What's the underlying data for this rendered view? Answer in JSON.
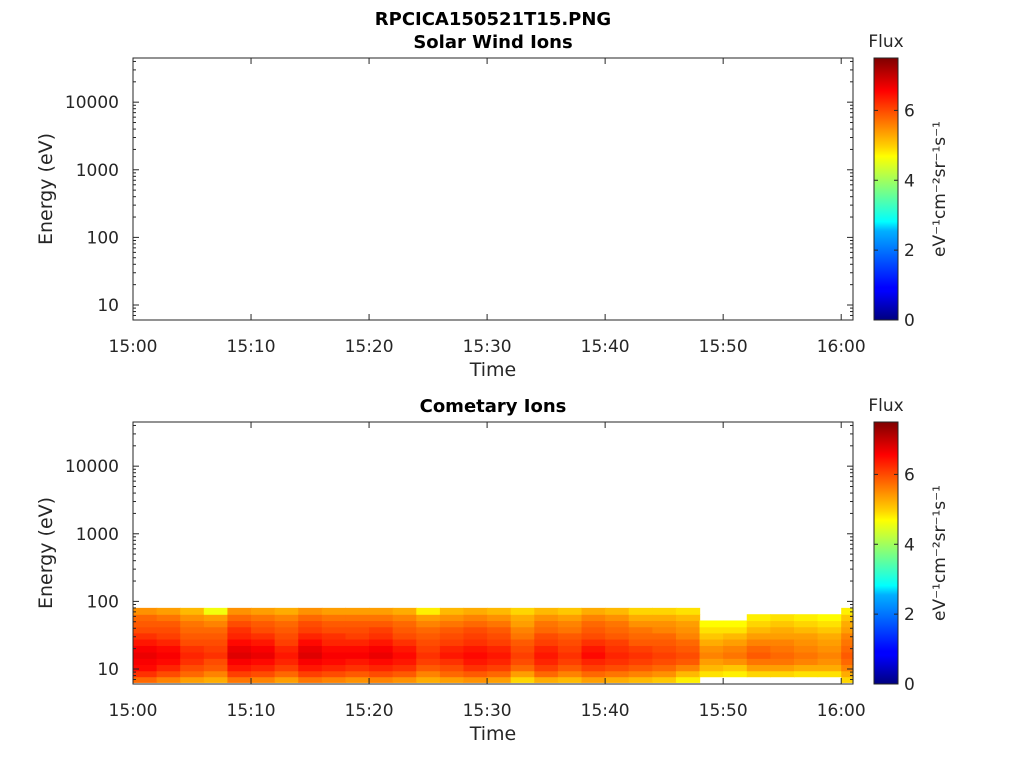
{
  "figure": {
    "file_title": "RPCICA150521T15.PNG"
  },
  "panels": [
    {
      "title": "Solar Wind Ions",
      "xlabel": "Time",
      "ylabel": "Energy (eV)",
      "xticks": [
        "15:00",
        "15:10",
        "15:20",
        "15:30",
        "15:40",
        "15:50",
        "16:00"
      ],
      "yticks": [
        "10",
        "100",
        "1000",
        "10000"
      ],
      "colorbar": {
        "title": "Flux",
        "unit": "eV⁻¹cm⁻²sr⁻¹s⁻¹",
        "ticks": [
          "0",
          "2",
          "4",
          "6"
        ]
      }
    },
    {
      "title": "Cometary Ions",
      "xlabel": "Time",
      "ylabel": "Energy (eV)",
      "xticks": [
        "15:00",
        "15:10",
        "15:20",
        "15:30",
        "15:40",
        "15:50",
        "16:00"
      ],
      "yticks": [
        "10",
        "100",
        "1000",
        "10000"
      ],
      "colorbar": {
        "title": "Flux",
        "unit": "eV⁻¹cm⁻²sr⁻¹s⁻¹",
        "ticks": [
          "0",
          "2",
          "4",
          "6"
        ]
      }
    }
  ],
  "chart_data": [
    {
      "type": "heatmap",
      "title": "Solar Wind Ions",
      "xlabel": "Time",
      "ylabel": "Energy (eV)",
      "x_range": [
        "15:00",
        "16:01"
      ],
      "y_range": [
        6,
        45000
      ],
      "y_scale": "log",
      "color_range": [
        0,
        7.5
      ],
      "colormap": "jet",
      "cells": []
    },
    {
      "type": "heatmap",
      "title": "Cometary Ions",
      "xlabel": "Time",
      "ylabel": "Energy (eV)",
      "x_range": [
        "15:00",
        "16:01"
      ],
      "y_range": [
        6,
        45000
      ],
      "y_scale": "log",
      "color_range": [
        0,
        7.5
      ],
      "colormap": "jet",
      "energy_bins": [
        7,
        8.5,
        10.5,
        13,
        16,
        20,
        25,
        31,
        38,
        47,
        58,
        72
      ],
      "columns": [
        {
          "time": "15:00",
          "flux": [
            5.8,
            6.2,
            6.5,
            6.6,
            6.7,
            6.6,
            6.4,
            6.2,
            6.0,
            5.9,
            5.8,
            5.5
          ]
        },
        {
          "time": "15:02",
          "flux": [
            5.6,
            6.0,
            6.3,
            6.5,
            6.6,
            6.5,
            6.3,
            6.1,
            6.0,
            5.9,
            5.7,
            5.4
          ]
        },
        {
          "time": "15:04",
          "flux": [
            5.4,
            5.8,
            6.0,
            6.2,
            6.3,
            6.2,
            6.0,
            5.9,
            5.8,
            5.7,
            5.5,
            5.2
          ]
        },
        {
          "time": "15:06",
          "flux": [
            5.3,
            5.6,
            5.9,
            6.0,
            6.2,
            6.1,
            6.0,
            5.9,
            5.8,
            5.6,
            5.4,
            4.6
          ]
        },
        {
          "time": "15:08",
          "flux": [
            5.7,
            6.1,
            6.4,
            6.6,
            6.8,
            6.7,
            6.5,
            6.3,
            6.2,
            6.0,
            5.8,
            5.5
          ]
        },
        {
          "time": "15:10",
          "flux": [
            5.6,
            6.0,
            6.3,
            6.5,
            6.7,
            6.6,
            6.4,
            6.2,
            6.0,
            5.9,
            5.7,
            5.4
          ]
        },
        {
          "time": "15:12",
          "flux": [
            5.4,
            5.8,
            6.1,
            6.3,
            6.4,
            6.3,
            6.1,
            6.0,
            5.9,
            5.8,
            5.6,
            5.3
          ]
        },
        {
          "time": "15:14",
          "flux": [
            5.7,
            6.1,
            6.4,
            6.6,
            6.8,
            6.7,
            6.5,
            6.3,
            6.1,
            6.0,
            5.8,
            5.5
          ]
        },
        {
          "time": "15:16",
          "flux": [
            5.6,
            6.0,
            6.3,
            6.5,
            6.6,
            6.5,
            6.3,
            6.2,
            6.0,
            5.9,
            5.7,
            5.4
          ]
        },
        {
          "time": "15:18",
          "flux": [
            5.5,
            5.9,
            6.2,
            6.4,
            6.6,
            6.5,
            6.3,
            6.1,
            6.0,
            5.9,
            5.7,
            5.4
          ]
        },
        {
          "time": "15:20",
          "flux": [
            5.6,
            6.0,
            6.3,
            6.5,
            6.7,
            6.6,
            6.4,
            6.2,
            6.1,
            5.9,
            5.7,
            5.4
          ]
        },
        {
          "time": "15:22",
          "flux": [
            5.5,
            5.9,
            6.2,
            6.4,
            6.5,
            6.4,
            6.2,
            6.0,
            5.9,
            5.8,
            5.6,
            5.3
          ]
        },
        {
          "time": "15:24",
          "flux": [
            5.3,
            5.6,
            5.9,
            6.1,
            6.2,
            6.1,
            6.0,
            5.9,
            5.8,
            5.6,
            5.4,
            4.8
          ]
        },
        {
          "time": "15:26",
          "flux": [
            5.4,
            5.8,
            6.0,
            6.2,
            6.4,
            6.3,
            6.1,
            6.0,
            5.9,
            5.7,
            5.5,
            5.2
          ]
        },
        {
          "time": "15:28",
          "flux": [
            5.5,
            5.9,
            6.2,
            6.4,
            6.5,
            6.4,
            6.2,
            6.1,
            6.0,
            5.8,
            5.6,
            5.3
          ]
        },
        {
          "time": "15:30",
          "flux": [
            5.4,
            5.8,
            6.1,
            6.3,
            6.4,
            6.3,
            6.1,
            6.0,
            5.9,
            5.7,
            5.5,
            5.2
          ]
        },
        {
          "time": "15:32",
          "flux": [
            5.0,
            5.4,
            5.8,
            6.0,
            6.1,
            6.0,
            5.9,
            5.7,
            5.6,
            5.4,
            5.3,
            5.0
          ]
        },
        {
          "time": "15:34",
          "flux": [
            5.3,
            5.8,
            6.1,
            6.3,
            6.4,
            6.3,
            6.1,
            6.0,
            5.8,
            5.7,
            5.5,
            5.2
          ]
        },
        {
          "time": "15:36",
          "flux": [
            5.2,
            5.6,
            5.9,
            6.1,
            6.2,
            6.1,
            6.0,
            5.9,
            5.7,
            5.6,
            5.4,
            5.1
          ]
        },
        {
          "time": "15:38",
          "flux": [
            5.4,
            5.8,
            6.1,
            6.3,
            6.5,
            6.4,
            6.2,
            6.0,
            5.9,
            5.8,
            5.6,
            5.3
          ]
        },
        {
          "time": "15:40",
          "flux": [
            5.3,
            5.7,
            6.0,
            6.2,
            6.3,
            6.2,
            6.1,
            5.9,
            5.8,
            5.7,
            5.5,
            5.2
          ]
        },
        {
          "time": "15:42",
          "flux": [
            5.2,
            5.6,
            5.9,
            6.1,
            6.2,
            6.1,
            5.9,
            5.8,
            5.7,
            5.5,
            5.3,
            5.0
          ]
        },
        {
          "time": "15:44",
          "flux": [
            5.1,
            5.5,
            5.8,
            6.0,
            6.1,
            6.0,
            5.9,
            5.8,
            5.6,
            5.5,
            5.3,
            5.0
          ]
        },
        {
          "time": "15:46",
          "flux": [
            4.8,
            5.2,
            5.6,
            5.9,
            6.0,
            5.9,
            5.8,
            5.6,
            5.5,
            5.4,
            5.2,
            4.9
          ]
        },
        {
          "time": "15:48",
          "flux": [
            null,
            4.9,
            5.2,
            5.4,
            5.6,
            5.5,
            5.3,
            5.1,
            4.9,
            4.7,
            null,
            null
          ]
        },
        {
          "time": "15:50",
          "flux": [
            null,
            4.8,
            5.1,
            5.5,
            5.7,
            5.6,
            5.4,
            5.2,
            4.9,
            4.7,
            null,
            null
          ]
        },
        {
          "time": "15:52",
          "flux": [
            null,
            5.0,
            5.4,
            5.7,
            5.9,
            5.8,
            5.6,
            5.4,
            5.2,
            5.0,
            4.8,
            null
          ]
        },
        {
          "time": "15:54",
          "flux": [
            null,
            5.0,
            5.4,
            5.7,
            5.8,
            5.7,
            5.6,
            5.4,
            5.3,
            5.1,
            4.9,
            null
          ]
        },
        {
          "time": "15:56",
          "flux": [
            null,
            4.9,
            5.3,
            5.6,
            5.7,
            5.6,
            5.5,
            5.4,
            5.2,
            5.0,
            4.8,
            null
          ]
        },
        {
          "time": "15:58",
          "flux": [
            null,
            4.9,
            5.3,
            5.5,
            5.6,
            5.5,
            5.4,
            5.3,
            5.1,
            4.9,
            4.7,
            null
          ]
        },
        {
          "time": "16:00",
          "flux": [
            5.0,
            5.3,
            5.6,
            5.8,
            5.9,
            5.8,
            5.7,
            5.6,
            5.4,
            5.3,
            5.1,
            4.8
          ]
        }
      ]
    }
  ]
}
